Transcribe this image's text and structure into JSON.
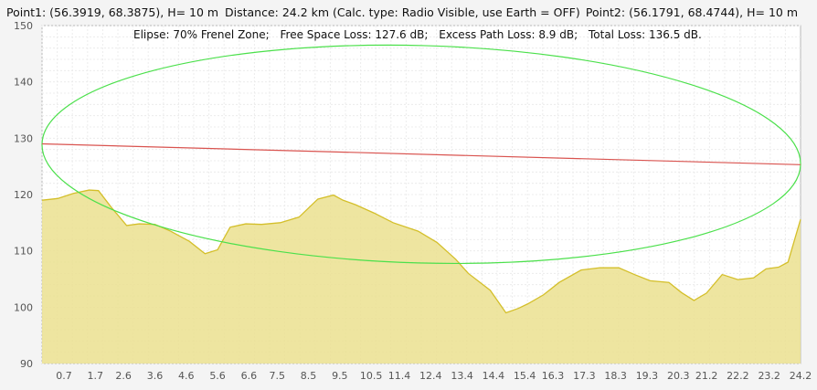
{
  "header": {
    "point1": "Point1: (56.3919, 68.3875), H= 10 m",
    "distance": "Distance: 24.2 km (Calc. type: Radio Visible, use Earth = OFF)",
    "point2": "Point2: (56.1791, 68.4744), H= 10 m"
  },
  "summary": {
    "ellipse": "Elipse: 70% Frenel Zone;",
    "free_space": "Free Space Loss: 127.6 dB;",
    "excess": "Excess Path Loss: 8.9 dB;",
    "total": "Total Loss: 136.5 dB."
  },
  "colors": {
    "terrain_fill": "#ebe08f",
    "terrain_line": "#d4bf2a",
    "los_line": "#d9534f",
    "fresnel": "#4be04b",
    "grid": "#d8d8d8"
  },
  "chart_data": {
    "type": "area",
    "xlim": [
      0,
      24.2
    ],
    "ylim": [
      90,
      150
    ],
    "x_ticks": [
      "0.7",
      "1.7",
      "2.6",
      "3.6",
      "4.6",
      "5.6",
      "6.6",
      "7.5",
      "8.5",
      "9.5",
      "10.5",
      "11.4",
      "12.4",
      "13.4",
      "14.4",
      "15.4",
      "16.3",
      "17.3",
      "18.3",
      "19.3",
      "20.3",
      "21.2",
      "22.2",
      "23.2",
      "24.2"
    ],
    "y_ticks": [
      90,
      100,
      110,
      120,
      130,
      140,
      150
    ],
    "terrain": {
      "name": "terrain",
      "x": [
        0,
        0.5,
        1,
        1.5,
        1.8,
        2.2,
        2.7,
        3.1,
        3.6,
        4.1,
        4.7,
        5.2,
        5.6,
        6,
        6.5,
        7,
        7.6,
        8.2,
        8.8,
        9.3,
        9.6,
        10,
        10.6,
        11.2,
        12,
        12.6,
        13.2,
        13.6,
        14.3,
        14.8,
        15.2,
        15.5,
        16,
        16.5,
        17.2,
        17.8,
        18.4,
        18.9,
        19.4,
        20,
        20.4,
        20.8,
        21.2,
        21.7,
        22.2,
        22.7,
        23.1,
        23.5,
        23.8,
        24.2
      ],
      "y": [
        119,
        119.3,
        120.2,
        120.8,
        120.7,
        117.8,
        114.5,
        114.8,
        114.7,
        113.5,
        111.7,
        109.5,
        110.2,
        114.2,
        114.8,
        114.7,
        115,
        116,
        119.2,
        119.9,
        119,
        118.2,
        116.7,
        115,
        113.5,
        111.5,
        108.5,
        106,
        103,
        99,
        99.8,
        100.6,
        102.2,
        104.4,
        106.6,
        107,
        107,
        105.8,
        104.7,
        104.4,
        102.6,
        101.2,
        102.5,
        105.8,
        104.9,
        105.2,
        106.8,
        107.1,
        108,
        115.6
      ]
    },
    "line_of_sight": {
      "name": "line of sight",
      "x": [
        0,
        24.2
      ],
      "y": [
        129,
        125.3
      ]
    },
    "fresnel_zone_percent": 70,
    "fresnel_max_radius": 19.3,
    "grid": true
  }
}
